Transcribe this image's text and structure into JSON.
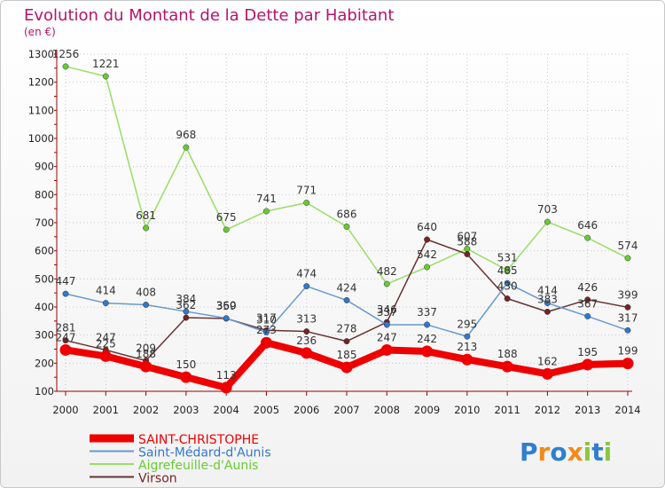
{
  "title": "Evolution du Montant de la Dette par Habitant",
  "subtitle": "(en €)",
  "logo": "Proxiti",
  "colors": {
    "title": "#b5146b",
    "axis": "#990000",
    "grid": "#c8c8c8"
  },
  "chart_data": {
    "type": "line",
    "x": [
      2000,
      2001,
      2002,
      2003,
      2004,
      2005,
      2006,
      2007,
      2008,
      2009,
      2010,
      2011,
      2012,
      2013,
      2014
    ],
    "ylim": [
      100,
      1300
    ],
    "yticks": [
      100,
      200,
      300,
      400,
      500,
      600,
      700,
      800,
      900,
      1000,
      1100,
      1200,
      1300
    ],
    "grid": true,
    "legend_position": "bottom-left",
    "series": [
      {
        "name": "SAINT-CHRISTOPHE",
        "color": "#ee0000",
        "marker": "#ee0000",
        "width": 8,
        "values": [
          247,
          225,
          188,
          150,
          113,
          273,
          236,
          185,
          247,
          242,
          213,
          188,
          162,
          195,
          199
        ],
        "labels": [
          "247",
          "225",
          "188",
          "150",
          "113",
          "273",
          "236",
          "185",
          "247",
          "242",
          "213",
          "188",
          "162",
          "195",
          "199"
        ]
      },
      {
        "name": "Saint-Médard-d'Aunis",
        "color": "#6699cc",
        "marker": "#3377cc",
        "width": 1.5,
        "values": [
          447,
          414,
          408,
          384,
          360,
          310,
          474,
          424,
          337,
          337,
          295,
          485,
          414,
          367,
          317
        ],
        "labels": [
          "447",
          "414",
          "408",
          "384",
          "360",
          "310",
          "474",
          "424",
          "337",
          "337",
          "295",
          "485",
          "414",
          "367",
          "317"
        ]
      },
      {
        "name": "Aigrefeuille-d'Aunis",
        "color": "#99dd66",
        "marker": "#66cc33",
        "width": 1.5,
        "values": [
          1256,
          1221,
          681,
          968,
          675,
          741,
          771,
          686,
          482,
          542,
          607,
          531,
          703,
          646,
          574
        ],
        "labels": [
          "1256",
          "1221",
          "681",
          "968",
          "675",
          "741",
          "771",
          "686",
          "482",
          "542",
          "607",
          "531",
          "703",
          "646",
          "574"
        ]
      },
      {
        "name": "Virson",
        "color": "#663333",
        "marker": "#772222",
        "width": 1.5,
        "values": [
          281,
          247,
          209,
          362,
          359,
          317,
          313,
          278,
          346,
          640,
          588,
          430,
          383,
          426,
          399
        ],
        "labels": [
          "281",
          "247",
          "209",
          "362",
          "359",
          "317",
          "313",
          "278",
          "346",
          "640",
          "588",
          "430",
          "383",
          "426",
          "399"
        ]
      }
    ]
  }
}
